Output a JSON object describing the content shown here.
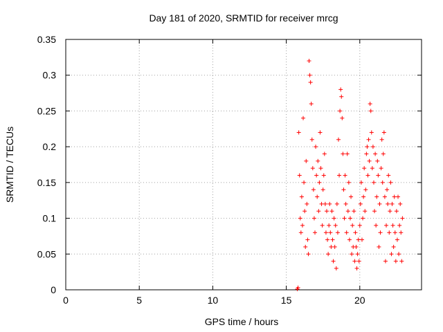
{
  "chart_data": {
    "type": "scatter",
    "title": "Day 181 of 2020, SRMTID for receiver mrcg",
    "xlabel": "GPS time / hours",
    "ylabel": "SRMTID / TECUs",
    "xlim": [
      0,
      24.2
    ],
    "ylim": [
      0,
      0.35
    ],
    "x_ticks": [
      0,
      5,
      10,
      15,
      20
    ],
    "x_tick_labels": [
      "0",
      "5",
      "10",
      "15",
      "20"
    ],
    "y_ticks": [
      0,
      0.05,
      0.1,
      0.15,
      0.2,
      0.25,
      0.3,
      0.35
    ],
    "y_tick_labels": [
      "0",
      "0.05",
      "0.1",
      "0.15",
      "0.2",
      "0.25",
      "0.3",
      "0.35"
    ],
    "grid": true,
    "marker": "plus",
    "color": "#ff0000",
    "series": [
      {
        "name": "SRMTID",
        "points": [
          [
            15.75,
            0.001
          ],
          [
            15.8,
            0.003
          ],
          [
            15.85,
            0.22
          ],
          [
            15.9,
            0.16
          ],
          [
            15.95,
            0.1
          ],
          [
            16.0,
            0.08
          ],
          [
            16.05,
            0.13
          ],
          [
            16.1,
            0.09
          ],
          [
            16.15,
            0.24
          ],
          [
            16.2,
            0.15
          ],
          [
            16.25,
            0.11
          ],
          [
            16.3,
            0.06
          ],
          [
            16.35,
            0.18
          ],
          [
            16.4,
            0.12
          ],
          [
            16.45,
            0.07
          ],
          [
            16.5,
            0.05
          ],
          [
            16.55,
            0.32
          ],
          [
            16.6,
            0.3
          ],
          [
            16.65,
            0.29
          ],
          [
            16.7,
            0.26
          ],
          [
            16.75,
            0.21
          ],
          [
            16.8,
            0.17
          ],
          [
            16.85,
            0.14
          ],
          [
            16.9,
            0.1
          ],
          [
            16.95,
            0.08
          ],
          [
            17.0,
            0.2
          ],
          [
            17.05,
            0.16
          ],
          [
            17.1,
            0.13
          ],
          [
            17.15,
            0.18
          ],
          [
            17.2,
            0.11
          ],
          [
            17.25,
            0.15
          ],
          [
            17.3,
            0.22
          ],
          [
            17.35,
            0.17
          ],
          [
            17.4,
            0.12
          ],
          [
            17.45,
            0.09
          ],
          [
            17.5,
            0.14
          ],
          [
            17.55,
            0.16
          ],
          [
            17.6,
            0.19
          ],
          [
            17.65,
            0.12
          ],
          [
            17.7,
            0.08
          ],
          [
            17.75,
            0.11
          ],
          [
            17.8,
            0.07
          ],
          [
            17.85,
            0.05
          ],
          [
            17.9,
            0.09
          ],
          [
            17.95,
            0.12
          ],
          [
            18.0,
            0.08
          ],
          [
            18.05,
            0.06
          ],
          [
            18.1,
            0.11
          ],
          [
            18.15,
            0.07
          ],
          [
            18.2,
            0.04
          ],
          [
            18.25,
            0.1
          ],
          [
            18.3,
            0.06
          ],
          [
            18.35,
            0.09
          ],
          [
            18.4,
            0.03
          ],
          [
            18.45,
            0.12
          ],
          [
            18.5,
            0.08
          ],
          [
            18.55,
            0.21
          ],
          [
            18.6,
            0.16
          ],
          [
            18.65,
            0.25
          ],
          [
            18.7,
            0.28
          ],
          [
            18.75,
            0.27
          ],
          [
            18.8,
            0.24
          ],
          [
            18.85,
            0.19
          ],
          [
            18.9,
            0.14
          ],
          [
            18.95,
            0.1
          ],
          [
            19.0,
            0.16
          ],
          [
            19.05,
            0.12
          ],
          [
            19.1,
            0.08
          ],
          [
            19.15,
            0.19
          ],
          [
            19.2,
            0.11
          ],
          [
            19.25,
            0.15
          ],
          [
            19.3,
            0.07
          ],
          [
            19.35,
            0.1
          ],
          [
            19.4,
            0.13
          ],
          [
            19.45,
            0.05
          ],
          [
            19.5,
            0.09
          ],
          [
            19.55,
            0.06
          ],
          [
            19.6,
            0.11
          ],
          [
            19.65,
            0.04
          ],
          [
            19.7,
            0.08
          ],
          [
            19.75,
            0.06
          ],
          [
            19.8,
            0.03
          ],
          [
            19.85,
            0.05
          ],
          [
            19.9,
            0.07
          ],
          [
            19.95,
            0.04
          ],
          [
            20.0,
            0.09
          ],
          [
            20.05,
            0.12
          ],
          [
            20.1,
            0.15
          ],
          [
            20.15,
            0.07
          ],
          [
            20.2,
            0.1
          ],
          [
            20.25,
            0.13
          ],
          [
            20.3,
            0.17
          ],
          [
            20.35,
            0.11
          ],
          [
            20.4,
            0.14
          ],
          [
            20.45,
            0.19
          ],
          [
            20.5,
            0.2
          ],
          [
            20.55,
            0.16
          ],
          [
            20.6,
            0.21
          ],
          [
            20.65,
            0.18
          ],
          [
            20.7,
            0.26
          ],
          [
            20.75,
            0.25
          ],
          [
            20.8,
            0.22
          ],
          [
            20.85,
            0.17
          ],
          [
            20.9,
            0.2
          ],
          [
            20.95,
            0.15
          ],
          [
            21.0,
            0.11
          ],
          [
            21.05,
            0.19
          ],
          [
            21.1,
            0.09
          ],
          [
            21.15,
            0.13
          ],
          [
            21.2,
            0.18
          ],
          [
            21.25,
            0.16
          ],
          [
            21.3,
            0.06
          ],
          [
            21.35,
            0.12
          ],
          [
            21.4,
            0.08
          ],
          [
            21.45,
            0.17
          ],
          [
            21.5,
            0.21
          ],
          [
            21.55,
            0.15
          ],
          [
            21.6,
            0.19
          ],
          [
            21.65,
            0.22
          ],
          [
            21.7,
            0.13
          ],
          [
            21.75,
            0.04
          ],
          [
            21.8,
            0.09
          ],
          [
            21.85,
            0.14
          ],
          [
            21.9,
            0.12
          ],
          [
            21.95,
            0.16
          ],
          [
            22.0,
            0.08
          ],
          [
            22.05,
            0.11
          ],
          [
            22.1,
            0.15
          ],
          [
            22.15,
            0.05
          ],
          [
            22.2,
            0.12
          ],
          [
            22.25,
            0.09
          ],
          [
            22.3,
            0.06
          ],
          [
            22.35,
            0.13
          ],
          [
            22.4,
            0.08
          ],
          [
            22.45,
            0.04
          ],
          [
            22.5,
            0.11
          ],
          [
            22.55,
            0.07
          ],
          [
            22.6,
            0.13
          ],
          [
            22.65,
            0.05
          ],
          [
            22.7,
            0.09
          ],
          [
            22.75,
            0.12
          ],
          [
            22.8,
            0.08
          ],
          [
            22.85,
            0.04
          ],
          [
            22.9,
            0.1
          ]
        ]
      }
    ]
  }
}
